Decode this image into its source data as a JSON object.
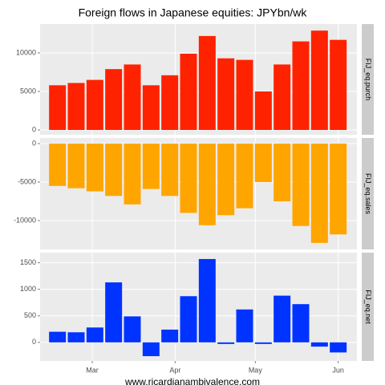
{
  "chart_data": {
    "type": "bar",
    "title": "Foreign flows in Japanese equities: JPYbn/wk",
    "xlabel": "www.ricardianambivalence.com",
    "x": [
      47,
      54,
      61,
      68,
      75,
      82,
      89,
      96,
      103,
      110,
      117,
      124,
      131,
      138,
      145,
      152
    ],
    "xlim": [
      40.5,
      159
    ],
    "xticks": [
      {
        "value": 60,
        "label": "Mar"
      },
      {
        "value": 91,
        "label": "Apr"
      },
      {
        "value": 121,
        "label": "May"
      },
      {
        "value": 152,
        "label": "Jun"
      }
    ],
    "grid": true,
    "panels": [
      {
        "strip": "FIJ_eq.purch",
        "color": "#ff2200",
        "values": [
          5800,
          6100,
          6500,
          7900,
          8500,
          5800,
          7100,
          9900,
          12200,
          9300,
          9100,
          5000,
          8500,
          11500,
          12900,
          11700
        ],
        "ylim": [
          -625,
          13750
        ],
        "yticks": [
          0,
          5000,
          10000
        ]
      },
      {
        "strip": "FIJ_eq.sales",
        "color": "#ffa500",
        "values": [
          -5500,
          -5800,
          -6200,
          -6800,
          -7900,
          -5900,
          -6800,
          -9000,
          -10600,
          -9300,
          -8400,
          -5000,
          -7500,
          -10700,
          -12900,
          -11800
        ],
        "ylim": [
          -13750,
          730
        ],
        "yticks": [
          -10000,
          -5000,
          0
        ]
      },
      {
        "strip": "FIJ_eq.net",
        "color": "#0033ff",
        "values": [
          200,
          190,
          280,
          1130,
          490,
          -260,
          240,
          870,
          1570,
          -30,
          620,
          -30,
          880,
          720,
          -80,
          -190
        ],
        "ylim": [
          -350,
          1690
        ],
        "yticks": [
          0,
          500,
          1000,
          1500
        ]
      }
    ]
  }
}
